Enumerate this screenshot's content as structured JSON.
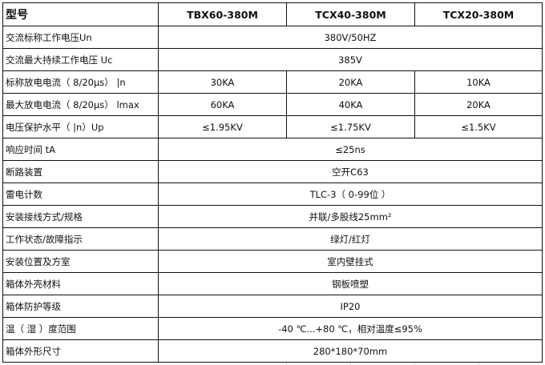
{
  "header": {
    "label": "型号",
    "models": [
      "TBX60-380M",
      "TCX40-380M",
      "TCX20-380M"
    ]
  },
  "rows": [
    {
      "label": "交流标称工作电压Un",
      "values": [
        "380V/50HZ"
      ]
    },
    {
      "label": "交流最大持续工作电压 Uc",
      "values": [
        "385V"
      ]
    },
    {
      "label": "标称放电电流（ 8/20μs） |n",
      "values": [
        "30KA",
        "20KA",
        "10KA"
      ]
    },
    {
      "label": "最大放电电流（ 8/20μs） lmax",
      "values": [
        "60KA",
        "40KA",
        "20KA"
      ]
    },
    {
      "label": "电压保护水平（ |n）Up",
      "values": [
        "≤1.95KV",
        "≤1.75KV",
        "≤1.5KV"
      ]
    },
    {
      "label": "响应时间 tA",
      "values": [
        "≤25ns"
      ]
    },
    {
      "label": "断路装置",
      "values": [
        "空开C63"
      ]
    },
    {
      "label": "雷电计数",
      "values": [
        "TLC-3（ 0-99位 ）"
      ]
    },
    {
      "label": "安装接线方式/规格",
      "values": [
        "并联/多股线25mm²"
      ]
    },
    {
      "label": "工作状态/故障指示",
      "values": [
        "绿灯/红灯"
      ]
    },
    {
      "label": "安装位置及方室",
      "values": [
        "室内壁挂式"
      ]
    },
    {
      "label": "箱体外壳材料",
      "values": [
        "钢板喷塑"
      ]
    },
    {
      "label": "箱体防护等级",
      "values": [
        "IP20"
      ]
    },
    {
      "label": "温（ 湿 ）度范围",
      "values": [
        "-40 ℃...+80 ℃，相对温度≤95%"
      ]
    },
    {
      "label": "箱体外形尺寸",
      "values": [
        "280*180*70mm"
      ]
    }
  ]
}
